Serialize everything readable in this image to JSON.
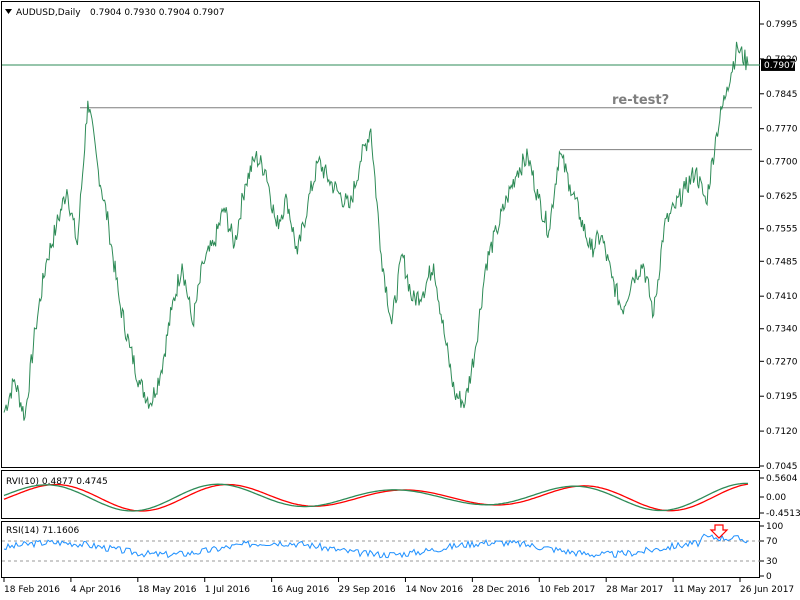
{
  "header": {
    "symbol": "AUDUSD,Daily",
    "ohlc": "0.7904 0.7930 0.7904 0.7907",
    "dropdown_icon": "triangle-down-icon"
  },
  "price_panel": {
    "price_ticks": [
      "0.7995",
      "0.7920",
      "0.7845",
      "0.7770",
      "0.7700",
      "0.7625",
      "0.7555",
      "0.7485",
      "0.7410",
      "0.7340",
      "0.7270",
      "0.7195",
      "0.7120",
      "0.7045"
    ],
    "current_price_label": "0.7907",
    "annotation": "re-test?",
    "line_color": "#2e8b57",
    "level_line_color": "#7f7f7f"
  },
  "rvi_panel": {
    "label": "RVI(10) 0.4877 0.4745",
    "ticks": [
      "0.5604",
      "0.00",
      "-0.4513"
    ],
    "main_color": "#2e8b57",
    "signal_color": "#ff0000"
  },
  "rsi_panel": {
    "label": "RSI(14) 71.1606",
    "ticks": [
      "100",
      "70",
      "30",
      "0"
    ],
    "line_color": "#1e90ff",
    "arrow_icon": "red-down-arrow-icon"
  },
  "x_axis": {
    "labels": [
      "18 Feb 2016",
      "4 Apr 2016",
      "18 May 2016",
      "1 Jul 2016",
      "16 Aug 2016",
      "29 Sep 2016",
      "14 Nov 2016",
      "28 Dec 2016",
      "10 Feb 2017",
      "28 Mar 2017",
      "11 May 2017",
      "26 Jun 2017"
    ]
  },
  "chart_data": {
    "type": "line",
    "title": "AUDUSD,Daily",
    "x": [
      "18 Feb 2016",
      "4 Apr 2016",
      "18 May 2016",
      "1 Jul 2016",
      "16 Aug 2016",
      "29 Sep 2016",
      "14 Nov 2016",
      "28 Dec 2016",
      "10 Feb 2017",
      "28 Mar 2017",
      "11 May 2017",
      "26 Jun 2017"
    ],
    "ylim": [
      0.7045,
      0.7995
    ],
    "series": [
      {
        "name": "AUDUSD",
        "points": [
          [
            "18 Feb 2016",
            0.716
          ],
          [
            "",
            0.723
          ],
          [
            "",
            0.715
          ],
          [
            "",
            0.734
          ],
          [
            "",
            0.748
          ],
          [
            "",
            0.756
          ],
          [
            "",
            0.764
          ],
          [
            "",
            0.752
          ],
          [
            "4 Apr 2016",
            0.783
          ],
          [
            "",
            0.768
          ],
          [
            "",
            0.756
          ],
          [
            "",
            0.74
          ],
          [
            "",
            0.73
          ],
          [
            "",
            0.722
          ],
          [
            "18 May 2016",
            0.718
          ],
          [
            "",
            0.725
          ],
          [
            "",
            0.738
          ],
          [
            "",
            0.748
          ],
          [
            "",
            0.735
          ],
          [
            "",
            0.748
          ],
          [
            "1 Jul 2016",
            0.752
          ],
          [
            "",
            0.76
          ],
          [
            "",
            0.752
          ],
          [
            "",
            0.765
          ],
          [
            "",
            0.771
          ],
          [
            "16 Aug 2016",
            0.768
          ],
          [
            "",
            0.756
          ],
          [
            "",
            0.762
          ],
          [
            "",
            0.75
          ],
          [
            "",
            0.761
          ],
          [
            "",
            0.77
          ],
          [
            "29 Sep 2016",
            0.766
          ],
          [
            "",
            0.763
          ],
          [
            "",
            0.76
          ],
          [
            "",
            0.77
          ],
          [
            "",
            0.777
          ],
          [
            "",
            0.75
          ],
          [
            "",
            0.735
          ],
          [
            "14 Nov 2016",
            0.75
          ],
          [
            "",
            0.74
          ],
          [
            "",
            0.742
          ],
          [
            "",
            0.748
          ],
          [
            "",
            0.733
          ],
          [
            "28 Dec 2016",
            0.72
          ],
          [
            "",
            0.718
          ],
          [
            "",
            0.73
          ],
          [
            "",
            0.748
          ],
          [
            "",
            0.755
          ],
          [
            "",
            0.762
          ],
          [
            "10 Feb 2017",
            0.768
          ],
          [
            "",
            0.771
          ],
          [
            "",
            0.762
          ],
          [
            "",
            0.755
          ],
          [
            "",
            0.772
          ],
          [
            "28 Mar 2017",
            0.765
          ],
          [
            "",
            0.758
          ],
          [
            "",
            0.751
          ],
          [
            "",
            0.754
          ],
          [
            "",
            0.745
          ],
          [
            "",
            0.738
          ],
          [
            "11 May 2017",
            0.745
          ],
          [
            "",
            0.748
          ],
          [
            "",
            0.737
          ],
          [
            "",
            0.756
          ],
          [
            "",
            0.76
          ],
          [
            "",
            0.764
          ],
          [
            "26 Jun 2017",
            0.768
          ],
          [
            "",
            0.761
          ],
          [
            "",
            0.776
          ],
          [
            "",
            0.786
          ],
          [
            "",
            0.7945
          ],
          [
            "",
            0.7907
          ]
        ]
      }
    ],
    "levels": [
      {
        "value": 0.7815,
        "label": "re-test?"
      },
      {
        "value": 0.7725,
        "label": ""
      }
    ],
    "grid": false
  }
}
